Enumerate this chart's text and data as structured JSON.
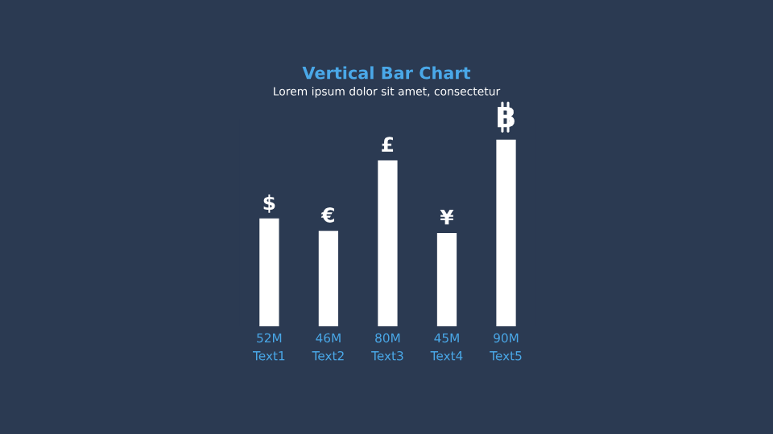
{
  "chart_data": {
    "type": "bar",
    "title": "Vertical Bar Chart",
    "subtitle": "Lorem ipsum dolor sit amet, consectetur",
    "categories": [
      "Text1",
      "Text2",
      "Text3",
      "Text4",
      "Text5"
    ],
    "values": [
      52,
      46,
      80,
      45,
      90
    ],
    "value_labels": [
      "52M",
      "46M",
      "80M",
      "45M",
      "90M"
    ],
    "color": "#ffffff",
    "annotations": [
      {
        "text": "$",
        "x": "Text1",
        "y": 52
      },
      {
        "text": "€",
        "x": "Text2",
        "y": 46
      },
      {
        "text": "£",
        "x": "Text3",
        "y": 80
      },
      {
        "text": "¥",
        "x": "Text4",
        "y": 45
      }
    ],
    "grid": false,
    "legend": false
  }
}
